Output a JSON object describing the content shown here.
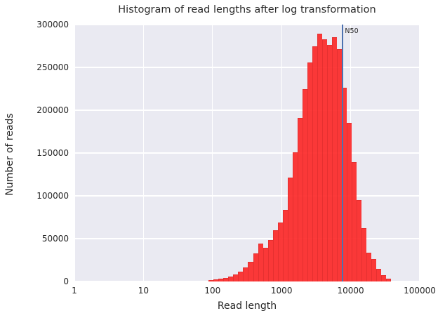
{
  "title": "Histogram of read lengths after log transformation",
  "axes": {
    "x_label": "Read length",
    "y_label": "Number of reads",
    "x_tick_labels": [
      "1",
      "10",
      "100",
      "1000",
      "10000",
      "100000"
    ],
    "y_tick_labels": [
      "0",
      "50000",
      "100000",
      "150000",
      "200000",
      "250000",
      "300000"
    ]
  },
  "annotation": {
    "n50_label": "N50"
  },
  "colors": {
    "plot_background": "#eaeaf2",
    "grid": "#ffffff",
    "bar_fill": "#fc2b2b",
    "bar_edge": "#e52222",
    "n50_line": "#4c72b0",
    "text": "#262626"
  },
  "chart_data": {
    "type": "bar",
    "subtype": "histogram",
    "title": "Histogram of read lengths after log transformation",
    "xlabel": "Read length",
    "ylabel": "Number of reads",
    "x_scale": "log10",
    "xlim": [
      1,
      100000
    ],
    "ylim": [
      0,
      300000
    ],
    "x_tick_values": [
      1,
      10,
      100,
      1000,
      10000,
      100000
    ],
    "y_tick_values": [
      0,
      50000,
      100000,
      150000,
      200000,
      250000,
      300000
    ],
    "grid": true,
    "legend": "none",
    "bins": {
      "count": 37,
      "log10_first_left_edge": 1.944,
      "log10_bin_width": 0.0714
    },
    "bin_centers": [
      95,
      113,
      133,
      156,
      184,
      217,
      256,
      302,
      356,
      419,
      494,
      582,
      686,
      809,
      953,
      1124,
      1325,
      1561,
      1840,
      2169,
      2557,
      3013,
      3552,
      4187,
      4935,
      5817,
      6857,
      8082,
      9526,
      11228,
      13235,
      15600,
      18390,
      21677,
      25552,
      30119,
      35498
    ],
    "counts": [
      1500,
      2300,
      3100,
      4000,
      5500,
      8000,
      11500,
      16000,
      23000,
      33000,
      44000,
      39000,
      48000,
      60000,
      69000,
      84000,
      121000,
      151000,
      191000,
      225000,
      256000,
      275000,
      289000,
      283000,
      276000,
      285000,
      271000,
      226000,
      185000,
      139000,
      95000,
      62000,
      34000,
      26000,
      15000,
      7000,
      3000
    ],
    "annotation_line": {
      "label": "N50",
      "x": 7700
    }
  }
}
